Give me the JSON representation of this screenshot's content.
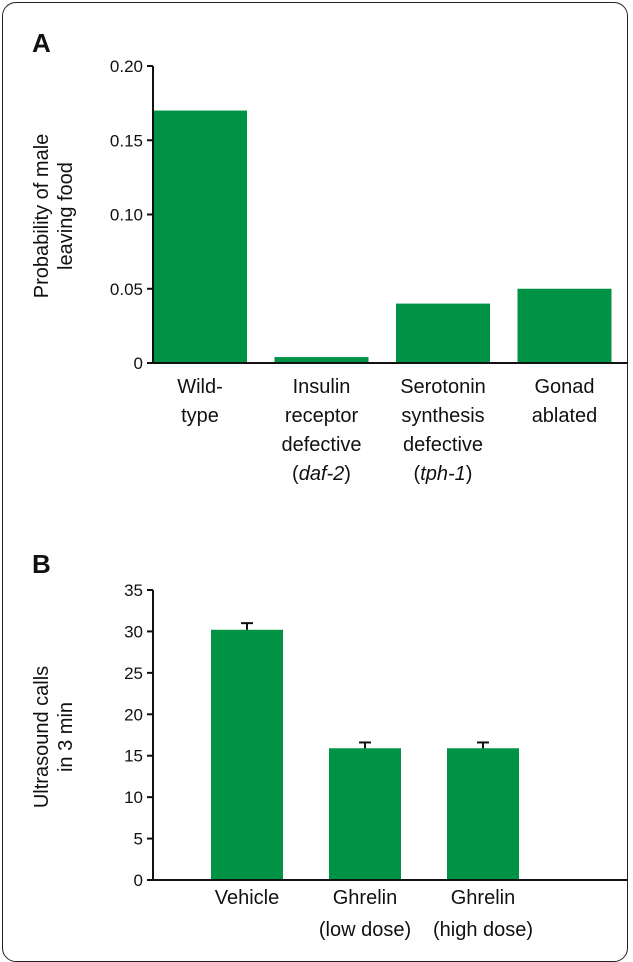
{
  "colors": {
    "bar": "#009245",
    "axis": "#111111",
    "errorbar": "#111111"
  },
  "chart_data": [
    {
      "panel_label": "A",
      "type": "bar",
      "ylabel": [
        "Probability of male",
        "leaving food"
      ],
      "ylim": [
        0,
        0.2
      ],
      "yticks": [
        0,
        0.05,
        0.1,
        0.15,
        0.2
      ],
      "ytick_labels": [
        "0",
        "0.05",
        "0.10",
        "0.15",
        "0.20"
      ],
      "categories": [
        [
          {
            "t": "Wild-"
          },
          {
            "t": "type"
          }
        ],
        [
          {
            "t": "Insulin"
          },
          {
            "t": "receptor"
          },
          {
            "t": "defective"
          },
          {
            "t": "(",
            "it": "daf-2",
            "post": ")"
          }
        ],
        [
          {
            "t": "Serotonin"
          },
          {
            "t": "synthesis"
          },
          {
            "t": "defective"
          },
          {
            "t": "(",
            "it": "tph-1",
            "post": ")"
          }
        ],
        [
          {
            "t": "Gonad"
          },
          {
            "t": "ablated"
          }
        ]
      ],
      "values": [
        0.17,
        0.004,
        0.04,
        0.05
      ]
    },
    {
      "panel_label": "B",
      "type": "bar",
      "ylabel": [
        "Ultrasound calls",
        "in 3 min"
      ],
      "ylim": [
        0,
        35
      ],
      "yticks": [
        0,
        5,
        10,
        15,
        20,
        25,
        30,
        35
      ],
      "ytick_labels": [
        "0",
        "5",
        "10",
        "15",
        "20",
        "25",
        "30",
        "35"
      ],
      "categories": [
        [
          {
            "t": "Vehicle"
          }
        ],
        [
          {
            "t": "Ghrelin"
          },
          {
            "t": "(low dose)"
          }
        ],
        [
          {
            "t": "Ghrelin"
          },
          {
            "t": "(high dose)"
          }
        ]
      ],
      "values": [
        30.2,
        15.9,
        15.9
      ],
      "errors": [
        0.8,
        0.7,
        0.7
      ]
    }
  ]
}
